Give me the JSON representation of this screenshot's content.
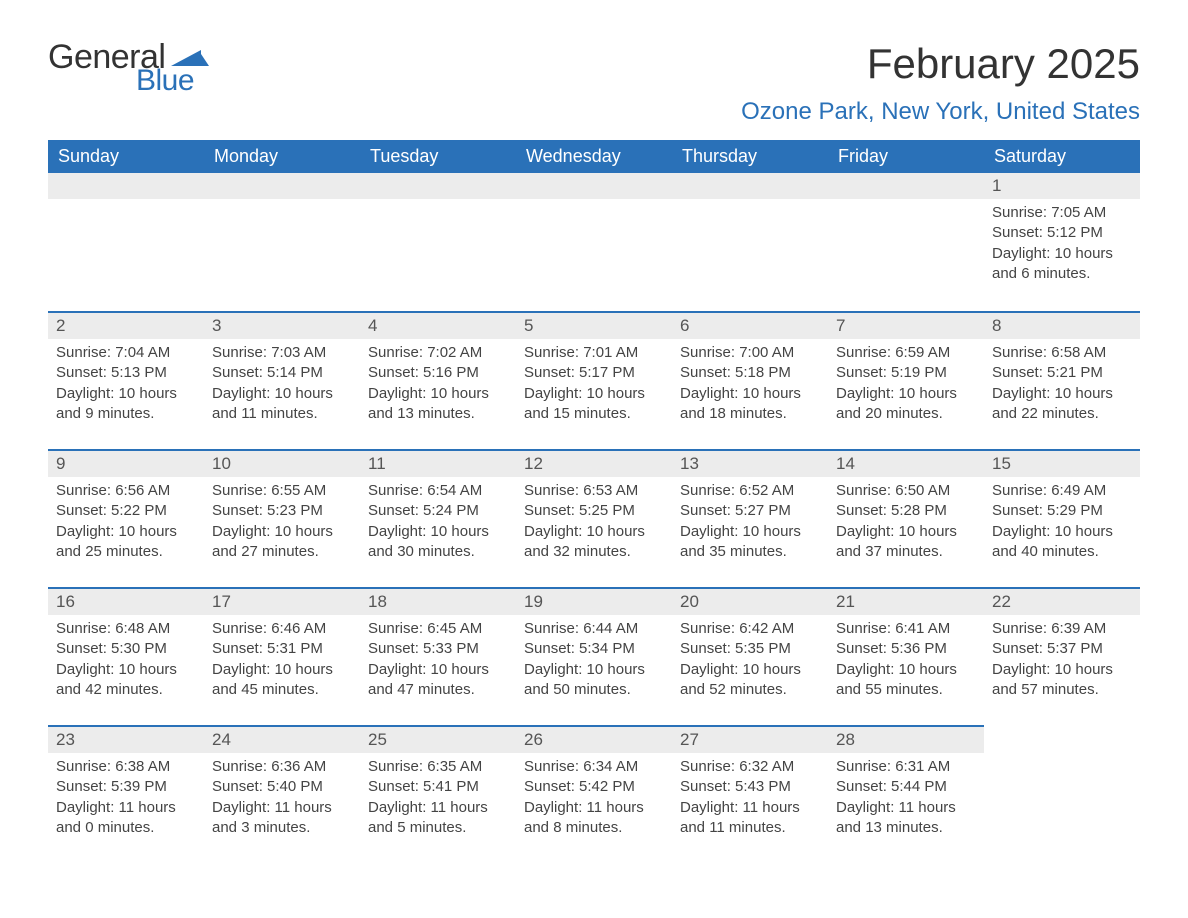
{
  "logo": {
    "word1": "General",
    "word2": "Blue",
    "sail_color": "#2a71b8"
  },
  "title": "February 2025",
  "location": "Ozone Park, New York, United States",
  "colors": {
    "header_bg": "#2a71b8",
    "header_text": "#ffffff",
    "daynum_bg": "#ececec",
    "row_border": "#2a71b8",
    "body_text": "#444444",
    "page_bg": "#ffffff"
  },
  "weekdays": [
    "Sunday",
    "Monday",
    "Tuesday",
    "Wednesday",
    "Thursday",
    "Friday",
    "Saturday"
  ],
  "weeks": [
    [
      null,
      null,
      null,
      null,
      null,
      null,
      {
        "n": "1",
        "sunrise": "Sunrise: 7:05 AM",
        "sunset": "Sunset: 5:12 PM",
        "daylight": "Daylight: 10 hours and 6 minutes."
      }
    ],
    [
      {
        "n": "2",
        "sunrise": "Sunrise: 7:04 AM",
        "sunset": "Sunset: 5:13 PM",
        "daylight": "Daylight: 10 hours and 9 minutes."
      },
      {
        "n": "3",
        "sunrise": "Sunrise: 7:03 AM",
        "sunset": "Sunset: 5:14 PM",
        "daylight": "Daylight: 10 hours and 11 minutes."
      },
      {
        "n": "4",
        "sunrise": "Sunrise: 7:02 AM",
        "sunset": "Sunset: 5:16 PM",
        "daylight": "Daylight: 10 hours and 13 minutes."
      },
      {
        "n": "5",
        "sunrise": "Sunrise: 7:01 AM",
        "sunset": "Sunset: 5:17 PM",
        "daylight": "Daylight: 10 hours and 15 minutes."
      },
      {
        "n": "6",
        "sunrise": "Sunrise: 7:00 AM",
        "sunset": "Sunset: 5:18 PM",
        "daylight": "Daylight: 10 hours and 18 minutes."
      },
      {
        "n": "7",
        "sunrise": "Sunrise: 6:59 AM",
        "sunset": "Sunset: 5:19 PM",
        "daylight": "Daylight: 10 hours and 20 minutes."
      },
      {
        "n": "8",
        "sunrise": "Sunrise: 6:58 AM",
        "sunset": "Sunset: 5:21 PM",
        "daylight": "Daylight: 10 hours and 22 minutes."
      }
    ],
    [
      {
        "n": "9",
        "sunrise": "Sunrise: 6:56 AM",
        "sunset": "Sunset: 5:22 PM",
        "daylight": "Daylight: 10 hours and 25 minutes."
      },
      {
        "n": "10",
        "sunrise": "Sunrise: 6:55 AM",
        "sunset": "Sunset: 5:23 PM",
        "daylight": "Daylight: 10 hours and 27 minutes."
      },
      {
        "n": "11",
        "sunrise": "Sunrise: 6:54 AM",
        "sunset": "Sunset: 5:24 PM",
        "daylight": "Daylight: 10 hours and 30 minutes."
      },
      {
        "n": "12",
        "sunrise": "Sunrise: 6:53 AM",
        "sunset": "Sunset: 5:25 PM",
        "daylight": "Daylight: 10 hours and 32 minutes."
      },
      {
        "n": "13",
        "sunrise": "Sunrise: 6:52 AM",
        "sunset": "Sunset: 5:27 PM",
        "daylight": "Daylight: 10 hours and 35 minutes."
      },
      {
        "n": "14",
        "sunrise": "Sunrise: 6:50 AM",
        "sunset": "Sunset: 5:28 PM",
        "daylight": "Daylight: 10 hours and 37 minutes."
      },
      {
        "n": "15",
        "sunrise": "Sunrise: 6:49 AM",
        "sunset": "Sunset: 5:29 PM",
        "daylight": "Daylight: 10 hours and 40 minutes."
      }
    ],
    [
      {
        "n": "16",
        "sunrise": "Sunrise: 6:48 AM",
        "sunset": "Sunset: 5:30 PM",
        "daylight": "Daylight: 10 hours and 42 minutes."
      },
      {
        "n": "17",
        "sunrise": "Sunrise: 6:46 AM",
        "sunset": "Sunset: 5:31 PM",
        "daylight": "Daylight: 10 hours and 45 minutes."
      },
      {
        "n": "18",
        "sunrise": "Sunrise: 6:45 AM",
        "sunset": "Sunset: 5:33 PM",
        "daylight": "Daylight: 10 hours and 47 minutes."
      },
      {
        "n": "19",
        "sunrise": "Sunrise: 6:44 AM",
        "sunset": "Sunset: 5:34 PM",
        "daylight": "Daylight: 10 hours and 50 minutes."
      },
      {
        "n": "20",
        "sunrise": "Sunrise: 6:42 AM",
        "sunset": "Sunset: 5:35 PM",
        "daylight": "Daylight: 10 hours and 52 minutes."
      },
      {
        "n": "21",
        "sunrise": "Sunrise: 6:41 AM",
        "sunset": "Sunset: 5:36 PM",
        "daylight": "Daylight: 10 hours and 55 minutes."
      },
      {
        "n": "22",
        "sunrise": "Sunrise: 6:39 AM",
        "sunset": "Sunset: 5:37 PM",
        "daylight": "Daylight: 10 hours and 57 minutes."
      }
    ],
    [
      {
        "n": "23",
        "sunrise": "Sunrise: 6:38 AM",
        "sunset": "Sunset: 5:39 PM",
        "daylight": "Daylight: 11 hours and 0 minutes."
      },
      {
        "n": "24",
        "sunrise": "Sunrise: 6:36 AM",
        "sunset": "Sunset: 5:40 PM",
        "daylight": "Daylight: 11 hours and 3 minutes."
      },
      {
        "n": "25",
        "sunrise": "Sunrise: 6:35 AM",
        "sunset": "Sunset: 5:41 PM",
        "daylight": "Daylight: 11 hours and 5 minutes."
      },
      {
        "n": "26",
        "sunrise": "Sunrise: 6:34 AM",
        "sunset": "Sunset: 5:42 PM",
        "daylight": "Daylight: 11 hours and 8 minutes."
      },
      {
        "n": "27",
        "sunrise": "Sunrise: 6:32 AM",
        "sunset": "Sunset: 5:43 PM",
        "daylight": "Daylight: 11 hours and 11 minutes."
      },
      {
        "n": "28",
        "sunrise": "Sunrise: 6:31 AM",
        "sunset": "Sunset: 5:44 PM",
        "daylight": "Daylight: 11 hours and 13 minutes."
      },
      null
    ]
  ]
}
